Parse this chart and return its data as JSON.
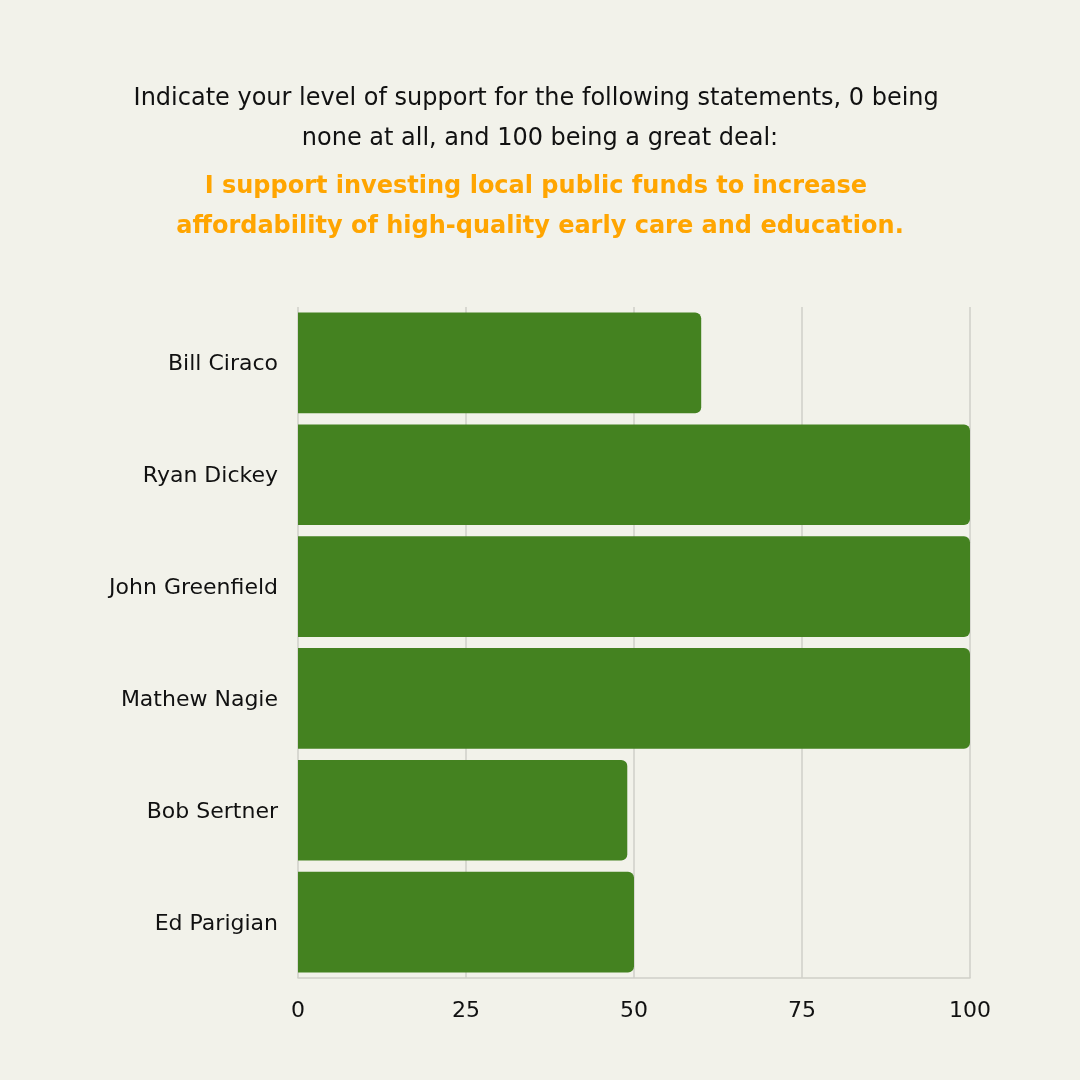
{
  "chart_data": {
    "type": "bar",
    "orientation": "horizontal",
    "title": "Indicate your level of support for the following statements, 0 being none at all, and 100 being a great deal:",
    "subtitle": "I support investing local public funds to increase affordability of high-quality early care and education.",
    "categories": [
      "Bill Ciraco",
      "Ryan Dickey",
      "John Greenfield",
      "Mathew Nagie",
      "Bob Sertner",
      "Ed Parigian"
    ],
    "values": [
      60,
      100,
      100,
      100,
      49,
      50
    ],
    "color": "#448220",
    "xlim": [
      0,
      100
    ],
    "xticks": [
      0,
      25,
      50,
      75,
      100
    ],
    "grid": "x"
  }
}
